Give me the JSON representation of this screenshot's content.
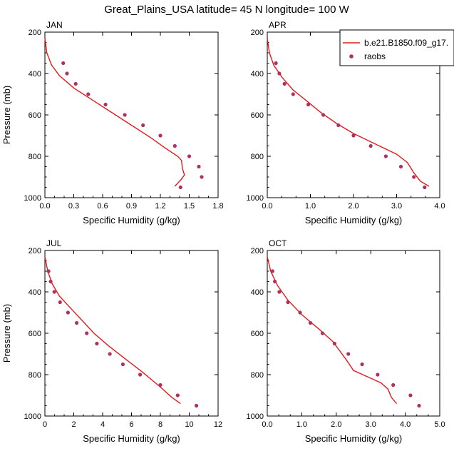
{
  "title": "Great_Plains_USA  latitude= 45 N longitude= 100 W",
  "legend": {
    "model_label": "b.e21.B1850.f09_g17.",
    "obs_label": "raobs",
    "placement": "top-right of APR panel"
  },
  "colors": {
    "model": "#e31a1c",
    "obs": "#b03060"
  },
  "chart_data": [
    {
      "type": "line",
      "panel": "JAN",
      "xlabel": "Specific Humidity (g/kg)",
      "ylabel": "Pressure (mb)",
      "xlim": [
        0,
        1.8
      ],
      "ylim": [
        200,
        1000
      ],
      "y_inverted": true,
      "xticks": [
        "0.0",
        "0.3",
        "0.6",
        "0.9",
        "1.2",
        "1.5",
        "1.8"
      ],
      "yticks": [
        "200",
        "400",
        "600",
        "800",
        "1000"
      ],
      "series": [
        {
          "name": "b.e21.B1850.f09_g17.",
          "kind": "line",
          "points": [
            [
              0.0,
              230
            ],
            [
              0.02,
              300
            ],
            [
              0.07,
              360
            ],
            [
              0.15,
              410
            ],
            [
              0.3,
              470
            ],
            [
              0.5,
              530
            ],
            [
              0.7,
              590
            ],
            [
              0.9,
              650
            ],
            [
              1.1,
              710
            ],
            [
              1.25,
              760
            ],
            [
              1.38,
              800
            ],
            [
              1.42,
              820
            ],
            [
              1.43,
              860
            ],
            [
              1.45,
              890
            ],
            [
              1.42,
              910
            ],
            [
              1.35,
              945
            ]
          ]
        },
        {
          "name": "raobs",
          "kind": "scatter",
          "points": [
            [
              0.19,
              350
            ],
            [
              0.23,
              400
            ],
            [
              0.32,
              450
            ],
            [
              0.45,
              500
            ],
            [
              0.63,
              550
            ],
            [
              0.83,
              600
            ],
            [
              1.02,
              650
            ],
            [
              1.2,
              700
            ],
            [
              1.35,
              750
            ],
            [
              1.5,
              800
            ],
            [
              1.6,
              850
            ],
            [
              1.63,
              900
            ],
            [
              1.41,
              950
            ]
          ]
        }
      ]
    },
    {
      "type": "line",
      "panel": "APR",
      "xlabel": "Specific Humidity (g/kg)",
      "ylabel": "Pressure (mb)",
      "xlim": [
        0,
        4.0
      ],
      "ylim": [
        200,
        1000
      ],
      "y_inverted": true,
      "xticks": [
        "0.0",
        "1.0",
        "2.0",
        "3.0",
        "4.0"
      ],
      "yticks": [
        "200",
        "400",
        "600",
        "800",
        "1000"
      ],
      "series": [
        {
          "name": "b.e21.B1850.f09_g17.",
          "kind": "line",
          "points": [
            [
              0.0,
              230
            ],
            [
              0.05,
              300
            ],
            [
              0.15,
              360
            ],
            [
              0.35,
              420
            ],
            [
              0.6,
              480
            ],
            [
              0.9,
              530
            ],
            [
              1.25,
              590
            ],
            [
              1.6,
              640
            ],
            [
              2.0,
              690
            ],
            [
              2.5,
              740
            ],
            [
              3.0,
              790
            ],
            [
              3.25,
              830
            ],
            [
              3.4,
              880
            ],
            [
              3.55,
              920
            ],
            [
              3.75,
              945
            ]
          ]
        },
        {
          "name": "raobs",
          "kind": "scatter",
          "points": [
            [
              0.2,
              350
            ],
            [
              0.28,
              400
            ],
            [
              0.4,
              450
            ],
            [
              0.6,
              500
            ],
            [
              0.95,
              550
            ],
            [
              1.3,
              600
            ],
            [
              1.65,
              650
            ],
            [
              2.0,
              700
            ],
            [
              2.4,
              750
            ],
            [
              2.75,
              800
            ],
            [
              3.1,
              850
            ],
            [
              3.4,
              900
            ],
            [
              3.65,
              950
            ]
          ]
        }
      ]
    },
    {
      "type": "line",
      "panel": "JUL",
      "xlabel": "Specific Humidity (g/kg)",
      "ylabel": "Pressure (mb)",
      "xlim": [
        0,
        12
      ],
      "ylim": [
        200,
        1000
      ],
      "y_inverted": true,
      "xticks": [
        "0",
        "2",
        "4",
        "6",
        "8",
        "10",
        "12"
      ],
      "yticks": [
        "200",
        "400",
        "600",
        "800",
        "1000"
      ],
      "series": [
        {
          "name": "b.e21.B1850.f09_g17.",
          "kind": "line",
          "points": [
            [
              0.0,
              230
            ],
            [
              0.2,
              300
            ],
            [
              0.5,
              360
            ],
            [
              1.0,
              420
            ],
            [
              1.8,
              480
            ],
            [
              2.6,
              540
            ],
            [
              3.4,
              600
            ],
            [
              4.4,
              660
            ],
            [
              5.5,
              720
            ],
            [
              6.8,
              790
            ],
            [
              8.0,
              860
            ],
            [
              8.8,
              910
            ],
            [
              9.4,
              940
            ]
          ]
        },
        {
          "name": "raobs",
          "kind": "scatter",
          "points": [
            [
              0.25,
              300
            ],
            [
              0.4,
              350
            ],
            [
              0.65,
              400
            ],
            [
              1.05,
              450
            ],
            [
              1.6,
              500
            ],
            [
              2.2,
              550
            ],
            [
              2.9,
              600
            ],
            [
              3.6,
              650
            ],
            [
              4.5,
              700
            ],
            [
              5.4,
              750
            ],
            [
              6.6,
              800
            ],
            [
              8.0,
              850
            ],
            [
              9.2,
              900
            ],
            [
              10.5,
              950
            ]
          ]
        }
      ]
    },
    {
      "type": "line",
      "panel": "OCT",
      "xlabel": "Specific Humidity (g/kg)",
      "ylabel": "Pressure (mb)",
      "xlim": [
        0,
        5.0
      ],
      "ylim": [
        200,
        1000
      ],
      "y_inverted": true,
      "xticks": [
        "0.0",
        "1.0",
        "2.0",
        "3.0",
        "4.0",
        "5.0"
      ],
      "yticks": [
        "200",
        "400",
        "600",
        "800",
        "1000"
      ],
      "series": [
        {
          "name": "b.e21.B1850.f09_g17.",
          "kind": "line",
          "points": [
            [
              0.0,
              230
            ],
            [
              0.1,
              300
            ],
            [
              0.3,
              370
            ],
            [
              0.6,
              440
            ],
            [
              1.0,
              510
            ],
            [
              1.5,
              580
            ],
            [
              1.9,
              640
            ],
            [
              2.3,
              730
            ],
            [
              2.5,
              780
            ],
            [
              2.9,
              810
            ],
            [
              3.3,
              840
            ],
            [
              3.5,
              870
            ],
            [
              3.6,
              910
            ],
            [
              3.75,
              940
            ]
          ]
        },
        {
          "name": "raobs",
          "kind": "scatter",
          "points": [
            [
              0.15,
              300
            ],
            [
              0.22,
              350
            ],
            [
              0.35,
              400
            ],
            [
              0.6,
              450
            ],
            [
              0.95,
              500
            ],
            [
              1.25,
              550
            ],
            [
              1.6,
              600
            ],
            [
              1.95,
              650
            ],
            [
              2.35,
              700
            ],
            [
              2.75,
              750
            ],
            [
              3.2,
              800
            ],
            [
              3.65,
              850
            ],
            [
              4.15,
              900
            ],
            [
              4.4,
              950
            ]
          ]
        }
      ]
    }
  ]
}
